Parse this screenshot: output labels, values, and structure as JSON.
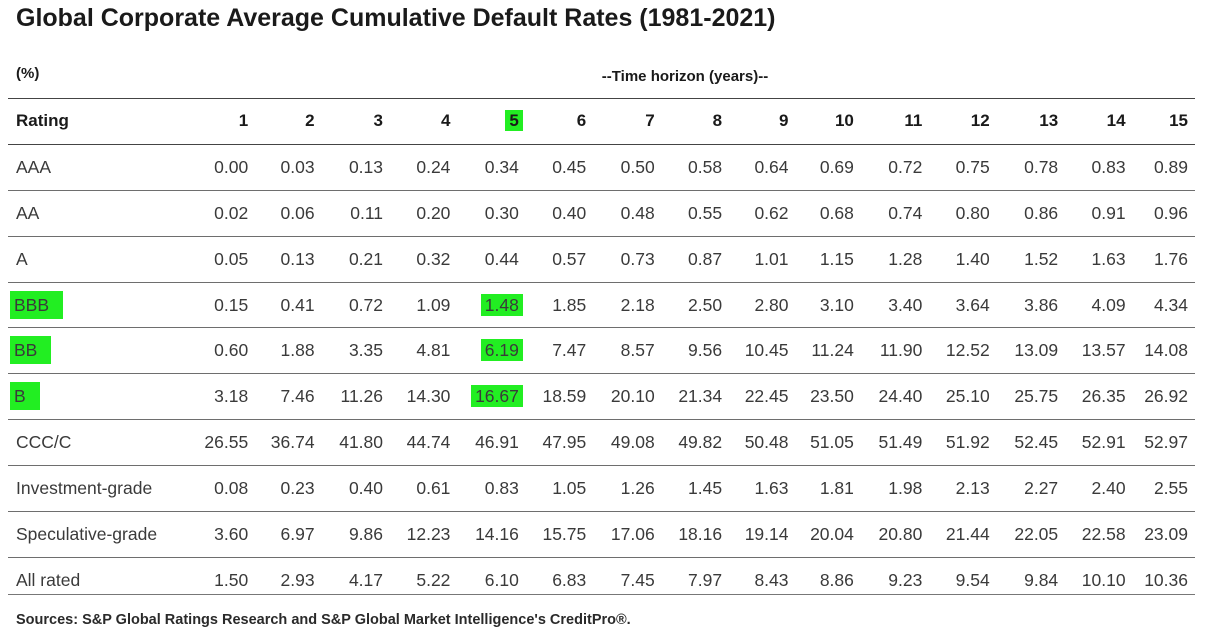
{
  "title": "Global Corporate Average Cumulative Default Rates (1981-2021)",
  "unit": "(%)",
  "horizon_label": "--Time horizon (years)--",
  "table": {
    "rating_header": "Rating",
    "columns": [
      "1",
      "2",
      "3",
      "4",
      "5",
      "6",
      "7",
      "8",
      "9",
      "10",
      "11",
      "12",
      "13",
      "14",
      "15"
    ],
    "rows": [
      {
        "rating": "AAA",
        "values": [
          "0.00",
          "0.03",
          "0.13",
          "0.24",
          "0.34",
          "0.45",
          "0.50",
          "0.58",
          "0.64",
          "0.69",
          "0.72",
          "0.75",
          "0.78",
          "0.83",
          "0.89"
        ]
      },
      {
        "rating": "AA",
        "values": [
          "0.02",
          "0.06",
          "0.11",
          "0.20",
          "0.30",
          "0.40",
          "0.48",
          "0.55",
          "0.62",
          "0.68",
          "0.74",
          "0.80",
          "0.86",
          "0.91",
          "0.96"
        ]
      },
      {
        "rating": "A",
        "values": [
          "0.05",
          "0.13",
          "0.21",
          "0.32",
          "0.44",
          "0.57",
          "0.73",
          "0.87",
          "1.01",
          "1.15",
          "1.28",
          "1.40",
          "1.52",
          "1.63",
          "1.76"
        ]
      },
      {
        "rating": "BBB",
        "values": [
          "0.15",
          "0.41",
          "0.72",
          "1.09",
          "1.48",
          "1.85",
          "2.18",
          "2.50",
          "2.80",
          "3.10",
          "3.40",
          "3.64",
          "3.86",
          "4.09",
          "4.34"
        ]
      },
      {
        "rating": "BB",
        "values": [
          "0.60",
          "1.88",
          "3.35",
          "4.81",
          "6.19",
          "7.47",
          "8.57",
          "9.56",
          "10.45",
          "11.24",
          "11.90",
          "12.52",
          "13.09",
          "13.57",
          "14.08"
        ]
      },
      {
        "rating": "B",
        "values": [
          "3.18",
          "7.46",
          "11.26",
          "14.30",
          "16.67",
          "18.59",
          "20.10",
          "21.34",
          "22.45",
          "23.50",
          "24.40",
          "25.10",
          "25.75",
          "26.35",
          "26.92"
        ]
      },
      {
        "rating": "CCC/C",
        "values": [
          "26.55",
          "36.74",
          "41.80",
          "44.74",
          "46.91",
          "47.95",
          "49.08",
          "49.82",
          "50.48",
          "51.05",
          "51.49",
          "51.92",
          "52.45",
          "52.91",
          "52.97"
        ]
      },
      {
        "rating": "Investment-grade",
        "values": [
          "0.08",
          "0.23",
          "0.40",
          "0.61",
          "0.83",
          "1.05",
          "1.26",
          "1.45",
          "1.63",
          "1.81",
          "1.98",
          "2.13",
          "2.27",
          "2.40",
          "2.55"
        ]
      },
      {
        "rating": "Speculative-grade",
        "values": [
          "3.60",
          "6.97",
          "9.86",
          "12.23",
          "14.16",
          "15.75",
          "17.06",
          "18.16",
          "19.14",
          "20.04",
          "20.80",
          "21.44",
          "22.05",
          "22.58",
          "23.09"
        ]
      },
      {
        "rating": "All rated",
        "values": [
          "1.50",
          "2.93",
          "4.17",
          "5.22",
          "6.10",
          "6.83",
          "7.45",
          "7.97",
          "8.43",
          "8.86",
          "9.23",
          "9.54",
          "9.84",
          "10.10",
          "10.36"
        ]
      }
    ]
  },
  "highlight_color": "#22ee22",
  "highlights": {
    "column": "5",
    "rows": [
      "BBB",
      "BB",
      "B"
    ]
  },
  "source": "Sources: S&P Global Ratings Research and S&P Global Market Intelligence's CreditPro®."
}
